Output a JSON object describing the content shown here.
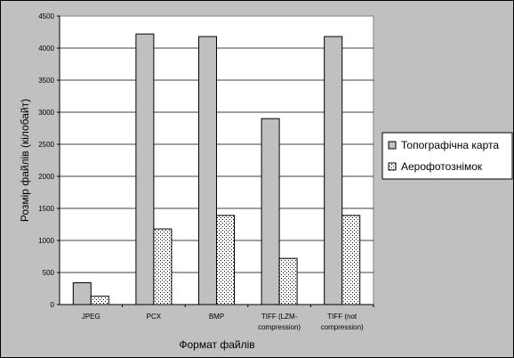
{
  "chart_data": {
    "type": "bar",
    "title": "",
    "xlabel": "Формат файлів",
    "ylabel": "Розмір файлів (кілобайт)",
    "ylim": [
      0,
      4500
    ],
    "ytick_step": 500,
    "grid": true,
    "legend_position": "right",
    "categories": [
      [
        "JPEG"
      ],
      [
        "PCX"
      ],
      [
        "BMP"
      ],
      [
        "TIFF (LZM-",
        "compression)"
      ],
      [
        "TIFF (not",
        "compression)"
      ]
    ],
    "series": [
      {
        "name": "Топографічна карта",
        "color": "#c0c0c0",
        "pattern": "solid",
        "values": [
          340,
          4220,
          4180,
          2900,
          4180
        ]
      },
      {
        "name": "Аерофотознімок",
        "color": "#ffffff",
        "pattern": "dotted",
        "values": [
          130,
          1180,
          1390,
          720,
          1390
        ]
      }
    ]
  }
}
